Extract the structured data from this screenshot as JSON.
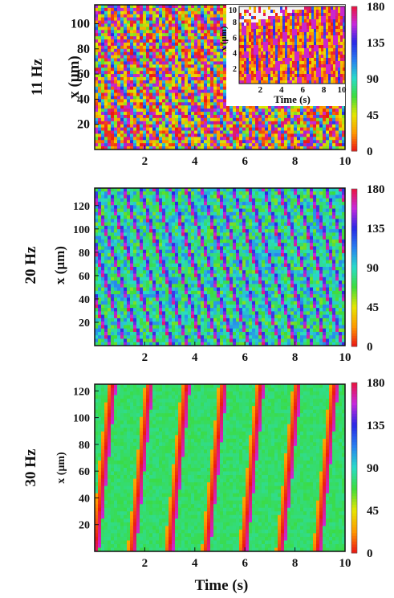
{
  "figure": {
    "xlabel_bottom": "Time (s)"
  },
  "chart_data": [
    {
      "type": "heatmap",
      "row_label": "11 Hz",
      "ylabel": "x (μm)",
      "xlabel": "",
      "xlim": [
        0,
        10
      ],
      "ylim": [
        0,
        115
      ],
      "x_ticks": [
        2,
        4,
        6,
        8,
        10
      ],
      "y_ticks": [
        20,
        40,
        60,
        80,
        100
      ],
      "colorbar": {
        "range": [
          0,
          180
        ],
        "ticks": [
          0,
          45,
          90,
          135,
          180
        ]
      },
      "dominant_value": 15,
      "noise": 0.55,
      "stripe": {
        "value": 110,
        "period_s": 0.56,
        "slope_um_per_s": -45
      },
      "inset": {
        "xlabel": "Time (s)",
        "ylabel": "x (μm)",
        "xlim": [
          0,
          10
        ],
        "ylim": [
          0,
          10
        ],
        "x_ticks": [
          2,
          4,
          6,
          8,
          10
        ],
        "y_ticks": [
          2,
          4,
          6,
          8,
          10
        ]
      }
    },
    {
      "type": "heatmap",
      "row_label": "20 Hz",
      "ylabel": "x (μm)",
      "xlabel": "",
      "xlim": [
        0,
        10
      ],
      "ylim": [
        0,
        135
      ],
      "x_ticks": [
        2,
        4,
        6,
        8,
        10
      ],
      "y_ticks": [
        20,
        40,
        60,
        80,
        100,
        120
      ],
      "colorbar": {
        "range": [
          0,
          180
        ],
        "ticks": [
          0,
          45,
          90,
          135,
          180
        ]
      },
      "dominant_value": 85,
      "noise": 0.3,
      "stripe": {
        "value": 150,
        "period_s": 0.62,
        "slope_um_per_s": -70
      }
    },
    {
      "type": "heatmap",
      "row_label": "30 Hz",
      "ylabel": "x (μm)",
      "xlabel": "Time (s)",
      "xlim": [
        0,
        10
      ],
      "ylim": [
        0,
        125
      ],
      "x_ticks": [
        2,
        4,
        6,
        8,
        10
      ],
      "y_ticks": [
        20,
        40,
        60,
        80,
        100,
        120
      ],
      "colorbar": {
        "range": [
          0,
          180
        ],
        "ticks": [
          0,
          45,
          90,
          135,
          180
        ]
      },
      "dominant_value": 75,
      "noise": 0.06,
      "stripe": {
        "value": 3,
        "period_s": 1.48,
        "slope_um_per_s": 180
      }
    }
  ]
}
